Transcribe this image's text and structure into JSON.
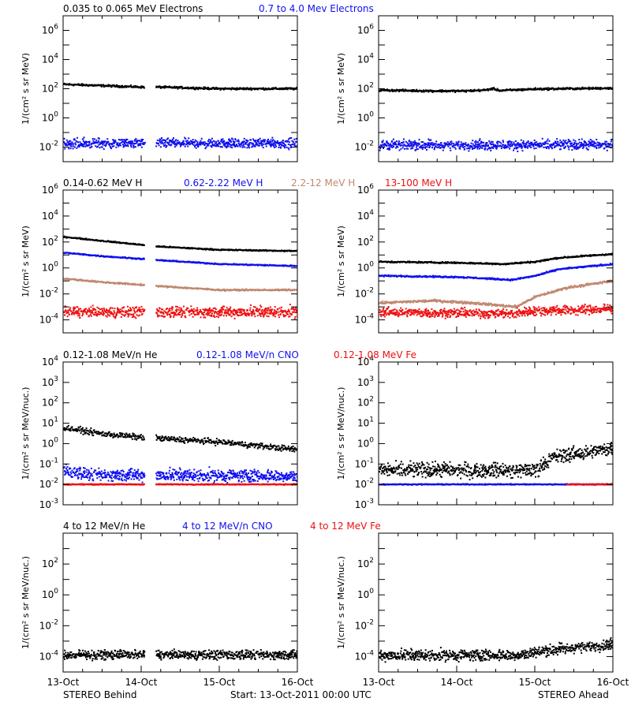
{
  "colors": {
    "black": "#000000",
    "blue": "#1010ee",
    "tan": "#c08870",
    "red": "#ee1010"
  },
  "footer": {
    "left": "STEREO Behind",
    "center": "Start: 13-Oct-2011 00:00 UTC",
    "right": "STEREO Ahead"
  },
  "x_tick_labels": [
    "13-Oct",
    "14-Oct",
    "15-Oct",
    "16-Oct"
  ],
  "chart_data": [
    {
      "type": "scatter",
      "row": 1,
      "legend": [
        {
          "label": "0.035 to 0.065 MeV Electrons",
          "color": "#000000"
        },
        {
          "label": "0.7 to 4.0 Mev Electrons",
          "color": "#1010ee"
        }
      ],
      "ylabel": "1/(cm² s sr MeV)",
      "yscale": "log",
      "ylim": [
        0.001,
        10000000
      ],
      "y_ticks": [
        {
          "v": 1000000,
          "base": "10",
          "exp": "6"
        },
        {
          "v": 10000,
          "base": "10",
          "exp": "4"
        },
        {
          "v": 100,
          "base": "10",
          "exp": "2"
        },
        {
          "v": 1,
          "base": "10",
          "exp": "0"
        },
        {
          "v": 0.01,
          "base": "10",
          "exp": "-2"
        }
      ],
      "xlim": [
        0,
        3
      ],
      "x_unit": "days since 13-Oct-2011 00:00 UTC",
      "panels": [
        {
          "spacecraft": "Behind",
          "gap": [
            1.03,
            1.18
          ],
          "series": [
            {
              "color": "#000000",
              "points": [
                [
                  0.0,
                  200
                ],
                [
                  1.0,
                  130
                ],
                [
                  1.2,
                  130
                ],
                [
                  2.0,
                  100
                ],
                [
                  3.0,
                  100
                ]
              ],
              "scatter": 0.06
            },
            {
              "color": "#1010ee",
              "points": [
                [
                  0.0,
                  0.018
                ],
                [
                  3.0,
                  0.018
                ]
              ],
              "scatter": 0.28
            }
          ]
        },
        {
          "spacecraft": "Ahead",
          "gap": null,
          "series": [
            {
              "color": "#000000",
              "points": [
                [
                  0.0,
                  80
                ],
                [
                  0.7,
                  70
                ],
                [
                  1.1,
                  70
                ],
                [
                  1.35,
                  80
                ],
                [
                  1.45,
                  100
                ],
                [
                  1.55,
                  75
                ],
                [
                  2.0,
                  95
                ],
                [
                  3.0,
                  110
                ]
              ],
              "scatter": 0.06
            },
            {
              "color": "#1010ee",
              "points": [
                [
                  0.0,
                  0.014
                ],
                [
                  3.0,
                  0.014
                ]
              ],
              "scatter": 0.28
            }
          ]
        }
      ]
    },
    {
      "type": "scatter",
      "row": 2,
      "legend": [
        {
          "label": "0.14-0.62 MeV H",
          "color": "#000000"
        },
        {
          "label": "0.62-2.22 MeV H",
          "color": "#1010ee"
        },
        {
          "label": "2.2-12 MeV H",
          "color": "#c08870"
        },
        {
          "label": "13-100 MeV H",
          "color": "#ee1010"
        }
      ],
      "ylabel": "1/(cm² s sr MeV)",
      "yscale": "log",
      "ylim": [
        1e-05,
        1000000
      ],
      "y_ticks": [
        {
          "v": 1000000,
          "base": "10",
          "exp": "6"
        },
        {
          "v": 10000,
          "base": "10",
          "exp": "4"
        },
        {
          "v": 100,
          "base": "10",
          "exp": "2"
        },
        {
          "v": 1,
          "base": "10",
          "exp": "0"
        },
        {
          "v": 0.01,
          "base": "10",
          "exp": "-2"
        },
        {
          "v": 0.0001,
          "base": "10",
          "exp": "-4"
        }
      ],
      "xlim": [
        0,
        3
      ],
      "x_unit": "days since 13-Oct-2011 00:00 UTC",
      "panels": [
        {
          "spacecraft": "Behind",
          "gap": [
            1.03,
            1.18
          ],
          "series": [
            {
              "color": "#000000",
              "points": [
                [
                  0.0,
                  250
                ],
                [
                  0.5,
                  120
                ],
                [
                  1.0,
                  60
                ],
                [
                  1.2,
                  45
                ],
                [
                  2.0,
                  25
                ],
                [
                  3.0,
                  20
                ]
              ],
              "scatter": 0.04
            },
            {
              "color": "#1010ee",
              "points": [
                [
                  0.0,
                  15
                ],
                [
                  0.5,
                  8
                ],
                [
                  1.0,
                  5
                ],
                [
                  1.2,
                  4
                ],
                [
                  2.0,
                  2
                ],
                [
                  3.0,
                  1.4
                ]
              ],
              "scatter": 0.04
            },
            {
              "color": "#c08870",
              "points": [
                [
                  0.0,
                  0.15
                ],
                [
                  0.5,
                  0.08
                ],
                [
                  1.0,
                  0.05
                ],
                [
                  1.2,
                  0.04
                ],
                [
                  2.0,
                  0.02
                ],
                [
                  3.0,
                  0.02
                ]
              ],
              "scatter": 0.05
            },
            {
              "color": "#ee1010",
              "points": [
                [
                  0.0,
                  0.0004
                ],
                [
                  3.0,
                  0.0004
                ]
              ],
              "scatter": 0.35
            }
          ]
        },
        {
          "spacecraft": "Ahead",
          "gap": null,
          "series": [
            {
              "color": "#000000",
              "points": [
                [
                  0.0,
                  3
                ],
                [
                  1.0,
                  2.5
                ],
                [
                  1.6,
                  2
                ],
                [
                  2.0,
                  3
                ],
                [
                  2.3,
                  6
                ],
                [
                  3.0,
                  12
                ]
              ],
              "scatter": 0.05
            },
            {
              "color": "#1010ee",
              "points": [
                [
                  0.0,
                  0.25
                ],
                [
                  1.0,
                  0.2
                ],
                [
                  1.7,
                  0.12
                ],
                [
                  2.0,
                  0.25
                ],
                [
                  2.3,
                  0.8
                ],
                [
                  3.0,
                  2
                ]
              ],
              "scatter": 0.05
            },
            {
              "color": "#c08870",
              "points": [
                [
                  0.0,
                  0.002
                ],
                [
                  0.7,
                  0.003
                ],
                [
                  1.2,
                  0.002
                ],
                [
                  1.75,
                  0.001
                ],
                [
                  2.0,
                  0.006
                ],
                [
                  2.4,
                  0.03
                ],
                [
                  3.0,
                  0.1
                ]
              ],
              "scatter": 0.08
            },
            {
              "color": "#ee1010",
              "points": [
                [
                  0.0,
                  0.0004
                ],
                [
                  1.7,
                  0.0003
                ],
                [
                  2.0,
                  0.0005
                ],
                [
                  3.0,
                  0.0007
                ]
              ],
              "scatter": 0.3
            }
          ]
        }
      ]
    },
    {
      "type": "scatter",
      "row": 3,
      "legend": [
        {
          "label": "0.12-1.08 MeV/n He",
          "color": "#000000"
        },
        {
          "label": "0.12-1.08 MeV/n CNO",
          "color": "#1010ee"
        },
        {
          "label": "0.12-1.08 MeV Fe",
          "color": "#ee1010"
        }
      ],
      "ylabel": "1/(cm² s sr MeV/nuc.)",
      "yscale": "log",
      "ylim": [
        0.001,
        10000
      ],
      "y_ticks": [
        {
          "v": 10000,
          "base": "10",
          "exp": "4"
        },
        {
          "v": 1000,
          "base": "10",
          "exp": "3"
        },
        {
          "v": 100,
          "base": "10",
          "exp": "2"
        },
        {
          "v": 10,
          "base": "10",
          "exp": "1"
        },
        {
          "v": 1,
          "base": "10",
          "exp": "0"
        },
        {
          "v": 0.1,
          "base": "10",
          "exp": "-1"
        },
        {
          "v": 0.01,
          "base": "10",
          "exp": "-2"
        },
        {
          "v": 0.001,
          "base": "10",
          "exp": "-3"
        }
      ],
      "xlim": [
        0,
        3
      ],
      "x_unit": "days since 13-Oct-2011 00:00 UTC",
      "panels": [
        {
          "spacecraft": "Behind",
          "gap": [
            1.03,
            1.18
          ],
          "series": [
            {
              "color": "#000000",
              "points": [
                [
                  0.0,
                  6
                ],
                [
                  0.5,
                  3
                ],
                [
                  1.0,
                  2
                ],
                [
                  1.2,
                  1.8
                ],
                [
                  2.0,
                  1.2
                ],
                [
                  3.0,
                  0.5
                ]
              ],
              "scatter": 0.12
            },
            {
              "color": "#1010ee",
              "points": [
                [
                  0.0,
                  0.05
                ],
                [
                  0.3,
                  0.03
                ],
                [
                  3.0,
                  0.025
                ]
              ],
              "scatter": 0.25
            },
            {
              "color": "#ee1010",
              "points": [
                [
                  0.0,
                  0.01
                ],
                [
                  3.0,
                  0.01
                ]
              ],
              "scatter": 0.02
            }
          ]
        },
        {
          "spacecraft": "Ahead",
          "gap": null,
          "series": [
            {
              "color": "#000000",
              "points": [
                [
                  0.0,
                  0.05
                ],
                [
                  2.0,
                  0.05
                ],
                [
                  2.2,
                  0.2
                ],
                [
                  2.6,
                  0.35
                ],
                [
                  3.0,
                  0.6
                ]
              ],
              "scatter": 0.3
            },
            {
              "color": "#1010ee",
              "points": [
                [
                  0.0,
                  0.01
                ],
                [
                  3.0,
                  0.01
                ]
              ],
              "scatter": 0.02
            },
            {
              "color": "#ee1010",
              "points": [
                [
                  2.4,
                  0.01
                ],
                [
                  3.0,
                  0.01
                ]
              ],
              "scatter": 0.02
            }
          ]
        }
      ]
    },
    {
      "type": "scatter",
      "row": 4,
      "legend": [
        {
          "label": "4 to 12 MeV/n He",
          "color": "#000000"
        },
        {
          "label": "4 to 12 MeV/n CNO",
          "color": "#1010ee"
        },
        {
          "label": "4 to 12 MeV Fe",
          "color": "#ee1010"
        }
      ],
      "ylabel": "1/(cm² s sr MeV/nuc.)",
      "yscale": "log",
      "ylim": [
        1e-05,
        10000
      ],
      "y_ticks": [
        {
          "v": 100,
          "base": "10",
          "exp": "2"
        },
        {
          "v": 1,
          "base": "10",
          "exp": "0"
        },
        {
          "v": 0.01,
          "base": "10",
          "exp": "-2"
        },
        {
          "v": 0.0001,
          "base": "10",
          "exp": "-4"
        }
      ],
      "xlim": [
        0,
        3
      ],
      "x_unit": "days since 13-Oct-2011 00:00 UTC",
      "panels": [
        {
          "spacecraft": "Behind",
          "gap": [
            1.03,
            1.18
          ],
          "series": [
            {
              "color": "#000000",
              "points": [
                [
                  0.0,
                  0.00013
                ],
                [
                  3.0,
                  0.00013
                ]
              ],
              "scatter": 0.25
            }
          ]
        },
        {
          "spacecraft": "Ahead",
          "gap": null,
          "series": [
            {
              "color": "#000000",
              "points": [
                [
                  0.0,
                  0.00012
                ],
                [
                  1.8,
                  0.00012
                ],
                [
                  2.0,
                  0.0002
                ],
                [
                  2.5,
                  0.0004
                ],
                [
                  3.0,
                  0.0006
                ]
              ],
              "scatter": 0.3
            }
          ]
        }
      ]
    }
  ]
}
